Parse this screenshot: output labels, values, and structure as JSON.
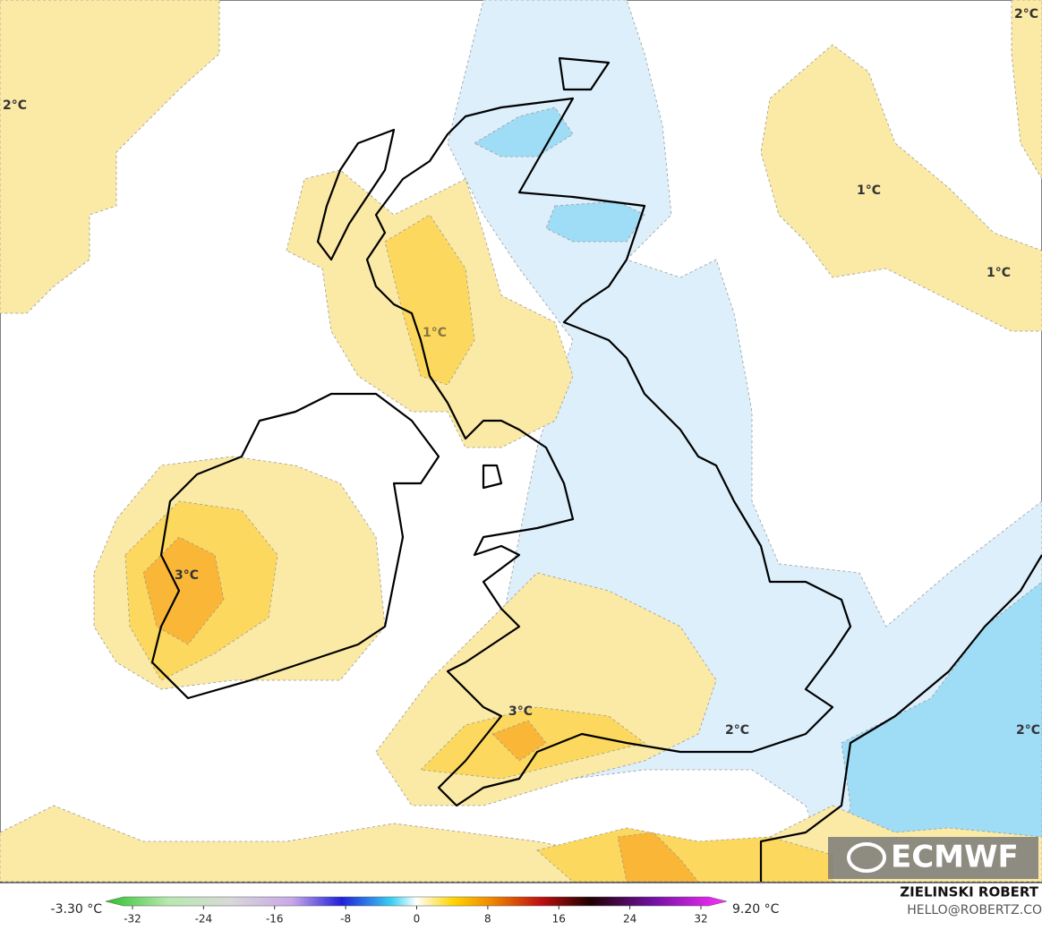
{
  "map": {
    "labels": [
      "2°C",
      "2°C",
      "1°C",
      "1°C",
      "1°C",
      "3°C",
      "3°C",
      "2°C",
      "2°C"
    ]
  },
  "logo": "ECMWF",
  "colorbar": {
    "min_label": "-3.30 °C",
    "max_label": "9.20 °C",
    "ticks": [
      -32,
      -24,
      -16,
      -8,
      0,
      8,
      16,
      24,
      32
    ]
  },
  "credit": {
    "name": "ZIELINSKI ROBERT",
    "email": "HELLO@ROBERTZ.CO"
  }
}
